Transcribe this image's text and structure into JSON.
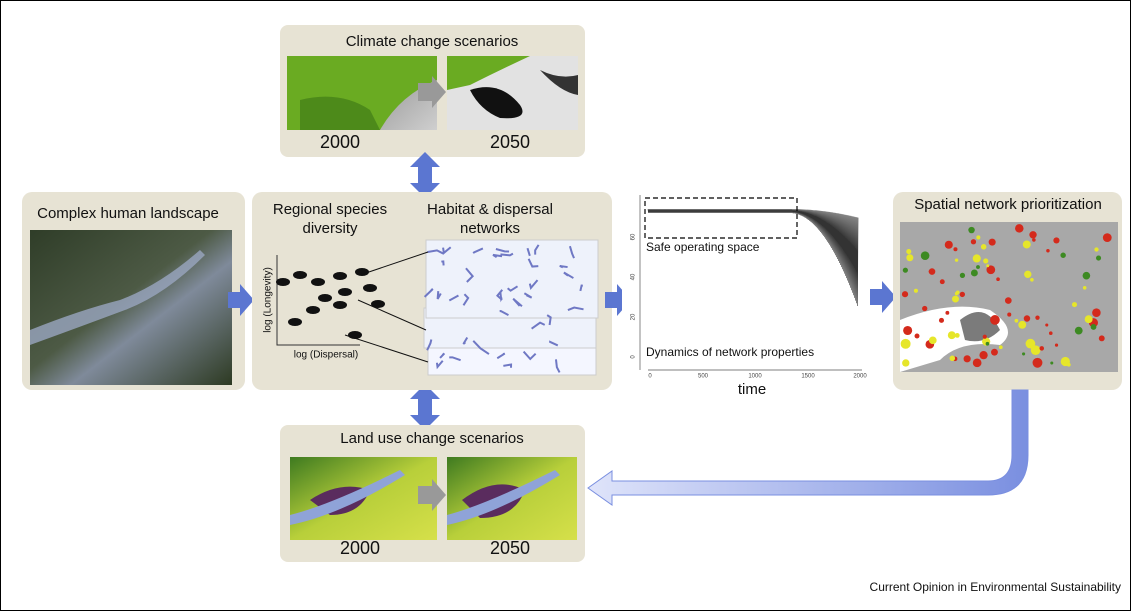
{
  "climate_panel": {
    "title": "Climate change scenarios",
    "labels": [
      "2000",
      "2050"
    ]
  },
  "landscape_panel": {
    "title": "Complex human landscape"
  },
  "diversity_panel": {
    "species_title": [
      "Regional species",
      "diversity"
    ],
    "network_title": [
      "Habitat & dispersal",
      "networks"
    ],
    "y_axis_label": "log (Longevity)",
    "x_axis_label": "log (Dispersal)"
  },
  "dynamics_panel": {
    "box_label": "Safe operating space",
    "caption": "Dynamics of network properties",
    "x_axis_label": "time",
    "x_ticks": [
      "0",
      "500",
      "1000",
      "1500",
      "2000"
    ],
    "y_ticks": [
      "0",
      "20",
      "40",
      "60"
    ]
  },
  "prioritization_panel": {
    "title": "Spatial network prioritization"
  },
  "land_use_panel": {
    "title": "Land use change scenarios",
    "labels": [
      "2000",
      "2050"
    ]
  },
  "footer": {
    "source": "Current Opinion in Environmental Sustainability"
  }
}
